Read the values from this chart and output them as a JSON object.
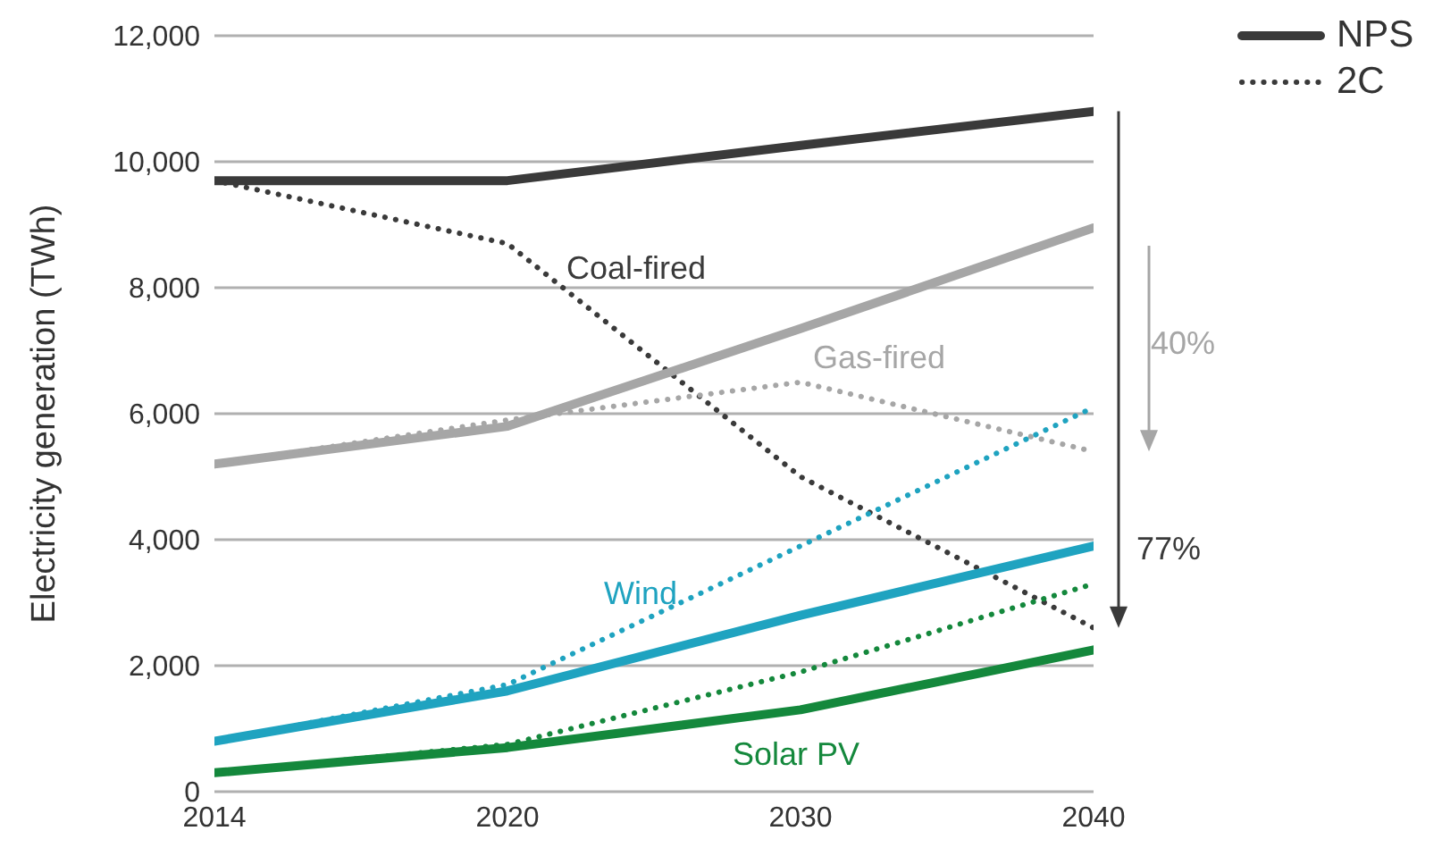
{
  "chart_data": {
    "type": "line",
    "ylabel": "Electricity generation (TWh)",
    "categories": [
      "2014",
      "2020",
      "2030",
      "2040"
    ],
    "ylim": [
      0,
      12000
    ],
    "yticks": [
      0,
      {
        "value": 2000,
        "label": "2,000"
      },
      {
        "value": 4000,
        "label": "4,000"
      },
      {
        "value": 6000,
        "label": "6,000"
      },
      {
        "value": 8000,
        "label": "8,000"
      },
      {
        "value": 10000,
        "label": "10,000"
      },
      {
        "value": 12000,
        "label": "12,000"
      }
    ],
    "grid": "y",
    "legend": "top right",
    "marker": "none",
    "series": [
      {
        "name": "NPS",
        "color": "#3a3a3a",
        "line_style": "solid",
        "values": [
          9700,
          9700,
          10260,
          10800
        ]
      },
      {
        "name": "2C",
        "color": "#3a3a3a",
        "line_style": "dotted",
        "values": [
          9700,
          8700,
          5000,
          2600
        ]
      },
      {
        "color": "#a6a6a6",
        "line_style": "solid",
        "values": [
          5200,
          5800,
          7350,
          8950
        ]
      },
      {
        "color": "#a6a6a6",
        "line_style": "dotted",
        "values": [
          5200,
          5900,
          6500,
          5400
        ]
      },
      {
        "color": "#1fa3c0",
        "line_style": "solid",
        "values": [
          800,
          1600,
          2800,
          3900
        ]
      },
      {
        "color": "#1fa3c0",
        "line_style": "dotted",
        "values": [
          800,
          1700,
          3900,
          6100
        ]
      },
      {
        "color": "#14883c",
        "line_style": "solid",
        "values": [
          300,
          700,
          1300,
          2250
        ]
      },
      {
        "color": "#14883c",
        "line_style": "dotted",
        "values": [
          300,
          750,
          1900,
          3300
        ]
      }
    ],
    "annotations": [
      "Coal-fired",
      "Gas-fired",
      "Wind",
      "Solar PV",
      "40%",
      "77%"
    ]
  }
}
